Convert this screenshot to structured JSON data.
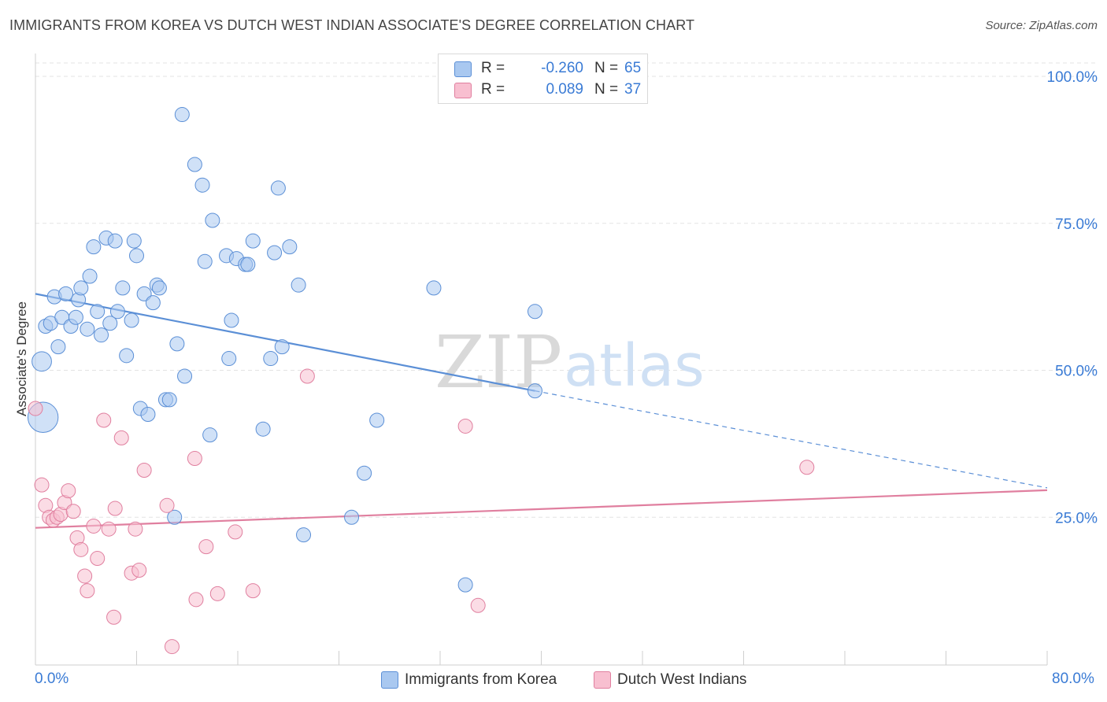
{
  "title": "IMMIGRANTS FROM KOREA VS DUTCH WEST INDIAN ASSOCIATE'S DEGREE CORRELATION CHART",
  "source": "Source: ZipAtlas.com",
  "watermark": {
    "zip": "ZIP",
    "atlas": "atlas"
  },
  "legend": {
    "rows": [
      {
        "r_label": "R =",
        "r_value": "-0.260",
        "n_label": "N =",
        "n_value": "65",
        "color": "#a9c8f0",
        "border": "#5b8fd6"
      },
      {
        "r_label": "R =",
        "r_value": "0.089",
        "n_label": "N =",
        "n_value": "37",
        "color": "#f8bfd0",
        "border": "#e07f9f"
      }
    ]
  },
  "bottom_legend": [
    {
      "label": "Immigrants from Korea",
      "color": "#a9c8f0",
      "border": "#5b8fd6"
    },
    {
      "label": "Dutch West Indians",
      "color": "#f8bfd0",
      "border": "#e07f9f"
    }
  ],
  "axis": {
    "ylabel": "Associate's Degree",
    "x_min_label": "0.0%",
    "x_max_label": "80.0%",
    "y_tick_labels": [
      "100.0%",
      "75.0%",
      "50.0%",
      "25.0%"
    ]
  },
  "chart_data": {
    "type": "scatter",
    "title": "IMMIGRANTS FROM KOREA VS DUTCH WEST INDIAN ASSOCIATE'S DEGREE CORRELATION CHART",
    "xlabel": "",
    "ylabel": "Associate's Degree",
    "xlim": [
      0,
      80
    ],
    "ylim": [
      0,
      100
    ],
    "y_ticks": [
      25,
      50,
      75,
      100
    ],
    "grid": true,
    "legend_position": "top-center",
    "series": [
      {
        "name": "Immigrants from Korea",
        "color": "#5b8fd6",
        "fill": "#a9c8f0",
        "trend": {
          "x": [
            0,
            39.5
          ],
          "y": [
            63,
            46.5
          ],
          "dashed_to": [
            80,
            30
          ]
        },
        "points": [
          [
            0.5,
            51.5,
            14
          ],
          [
            0.6,
            42.0,
            22
          ],
          [
            0.8,
            57.5,
            10
          ],
          [
            1.2,
            58.0,
            10
          ],
          [
            1.5,
            62.5,
            10
          ],
          [
            1.8,
            54.0,
            10
          ],
          [
            2.1,
            59.0,
            10
          ],
          [
            2.4,
            63.0,
            10
          ],
          [
            2.8,
            57.5,
            10
          ],
          [
            3.2,
            59.0,
            10
          ],
          [
            3.4,
            62.0,
            10
          ],
          [
            3.6,
            64.0,
            10
          ],
          [
            4.1,
            57.0,
            10
          ],
          [
            4.3,
            66.0,
            10
          ],
          [
            4.6,
            71.0,
            10
          ],
          [
            4.9,
            60.0,
            10
          ],
          [
            5.2,
            56.0,
            10
          ],
          [
            5.6,
            72.5,
            10
          ],
          [
            5.9,
            58.0,
            10
          ],
          [
            6.3,
            72.0,
            10
          ],
          [
            6.5,
            60.0,
            10
          ],
          [
            6.9,
            64.0,
            10
          ],
          [
            7.2,
            52.5,
            10
          ],
          [
            7.6,
            58.5,
            10
          ],
          [
            7.8,
            72.0,
            10
          ],
          [
            8.0,
            69.5,
            10
          ],
          [
            8.3,
            43.5,
            10
          ],
          [
            8.6,
            63.0,
            10
          ],
          [
            8.9,
            42.5,
            10
          ],
          [
            9.3,
            61.5,
            10
          ],
          [
            9.6,
            64.5,
            10
          ],
          [
            9.8,
            64.0,
            10
          ],
          [
            10.3,
            45.0,
            10
          ],
          [
            10.6,
            45.0,
            10
          ],
          [
            11.0,
            25.0,
            10
          ],
          [
            11.2,
            54.5,
            10
          ],
          [
            11.6,
            93.5,
            10
          ],
          [
            11.8,
            49.0,
            10
          ],
          [
            12.6,
            85.0,
            10
          ],
          [
            13.2,
            81.5,
            10
          ],
          [
            13.4,
            68.5,
            10
          ],
          [
            13.8,
            39.0,
            10
          ],
          [
            14.0,
            75.5,
            10
          ],
          [
            15.1,
            69.5,
            10
          ],
          [
            15.3,
            52.0,
            10
          ],
          [
            15.5,
            58.5,
            10
          ],
          [
            15.9,
            69.0,
            10
          ],
          [
            16.6,
            68.0,
            10
          ],
          [
            16.8,
            68.0,
            10
          ],
          [
            17.2,
            72.0,
            10
          ],
          [
            18.0,
            40.0,
            10
          ],
          [
            18.6,
            52.0,
            10
          ],
          [
            18.9,
            70.0,
            10
          ],
          [
            19.2,
            81.0,
            10
          ],
          [
            19.5,
            54.0,
            10
          ],
          [
            20.1,
            71.0,
            10
          ],
          [
            20.8,
            64.5,
            10
          ],
          [
            21.2,
            22.0,
            10
          ],
          [
            25.0,
            25.0,
            10
          ],
          [
            26.0,
            32.5,
            10
          ],
          [
            27.0,
            41.5,
            10
          ],
          [
            31.5,
            64.0,
            10
          ],
          [
            34.0,
            13.5,
            10
          ],
          [
            39.5,
            60.0,
            10
          ],
          [
            39.5,
            46.5,
            10
          ]
        ]
      },
      {
        "name": "Dutch West Indians",
        "color": "#e07f9f",
        "fill": "#f8bfd0",
        "trend": {
          "x": [
            0,
            80
          ],
          "y": [
            23.2,
            29.6
          ]
        },
        "points": [
          [
            0.0,
            43.5,
            10
          ],
          [
            0.5,
            30.5,
            10
          ],
          [
            0.8,
            27.0,
            10
          ],
          [
            1.1,
            25.0,
            10
          ],
          [
            1.4,
            24.5,
            10
          ],
          [
            1.7,
            25.0,
            10
          ],
          [
            2.0,
            25.5,
            10
          ],
          [
            2.3,
            27.5,
            10
          ],
          [
            2.6,
            29.5,
            10
          ],
          [
            3.0,
            26.0,
            10
          ],
          [
            3.3,
            21.5,
            10
          ],
          [
            3.6,
            19.5,
            10
          ],
          [
            3.9,
            15.0,
            10
          ],
          [
            4.1,
            12.5,
            10
          ],
          [
            4.6,
            23.5,
            10
          ],
          [
            4.9,
            18.0,
            10
          ],
          [
            5.4,
            41.5,
            10
          ],
          [
            5.8,
            23.0,
            10
          ],
          [
            6.2,
            8.0,
            10
          ],
          [
            6.3,
            26.5,
            10
          ],
          [
            6.8,
            38.5,
            10
          ],
          [
            7.6,
            15.5,
            10
          ],
          [
            7.9,
            23.0,
            10
          ],
          [
            8.2,
            16.0,
            10
          ],
          [
            8.6,
            33.0,
            10
          ],
          [
            10.4,
            27.0,
            10
          ],
          [
            10.8,
            3.0,
            10
          ],
          [
            12.6,
            35.0,
            10
          ],
          [
            12.7,
            11.0,
            10
          ],
          [
            13.5,
            20.0,
            10
          ],
          [
            14.4,
            12.0,
            10
          ],
          [
            15.8,
            22.5,
            10
          ],
          [
            17.2,
            12.5,
            10
          ],
          [
            21.5,
            49.0,
            10
          ],
          [
            34.0,
            40.5,
            10
          ],
          [
            35.0,
            10.0,
            10
          ],
          [
            61.0,
            33.5,
            10
          ]
        ]
      }
    ]
  }
}
